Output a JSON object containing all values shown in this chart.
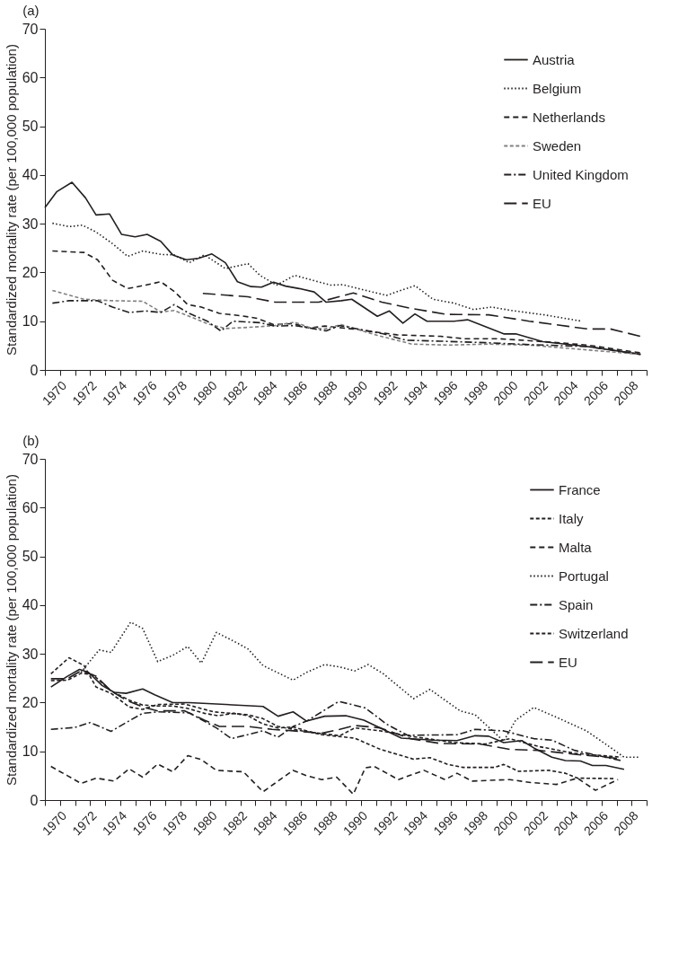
{
  "chart_data": [
    {
      "type": "line",
      "title": "(a)",
      "ylabel": "Standardized mortality rate (per 100,000 population)",
      "xlim": [
        1969,
        2009
      ],
      "ylim": [
        0,
        70
      ],
      "yticks": [
        0,
        10,
        20,
        30,
        40,
        50,
        60,
        70
      ],
      "xticks": [
        {
          "value": 1969,
          "label": null
        },
        1970,
        {
          "value": 1971,
          "label": null
        },
        1972,
        {
          "value": 1973,
          "label": null
        },
        1974,
        {
          "value": 1975,
          "label": null
        },
        1976,
        {
          "value": 1977,
          "label": null
        },
        1978,
        {
          "value": 1979,
          "label": null
        },
        1980,
        {
          "value": 1981,
          "label": null
        },
        1982,
        {
          "value": 1983,
          "label": null
        },
        1984,
        {
          "value": 1985,
          "label": null
        },
        1986,
        {
          "value": 1987,
          "label": null
        },
        1988,
        {
          "value": 1989,
          "label": null
        },
        1990,
        {
          "value": 1991,
          "label": null
        },
        1992,
        {
          "value": 1993,
          "label": null
        },
        1994,
        {
          "value": 1995,
          "label": null
        },
        1996,
        {
          "value": 1997,
          "label": null
        },
        1998,
        {
          "value": 1999,
          "label": null
        },
        2000,
        {
          "value": 2001,
          "label": null
        },
        2002,
        {
          "value": 2003,
          "label": null
        },
        2004,
        {
          "value": 2005,
          "label": null
        },
        2006,
        {
          "value": 2007,
          "label": null
        },
        2008,
        {
          "value": 2009,
          "label": null
        }
      ],
      "grid": false,
      "legend": "top right",
      "series": [
        {
          "name": "Austria",
          "color": "#231f20",
          "line_style": "solid",
          "x": [
            1969.0,
            1969.8,
            1970.8,
            1971.7,
            1972.4,
            1973.3,
            1974.1,
            1975.0,
            1975.8,
            1976.7,
            1977.5,
            1978.4,
            1979.2,
            1980.1,
            1981.0,
            1981.8,
            1982.7,
            1983.4,
            1984.2,
            1985.0,
            1985.9,
            1986.9,
            1987.7,
            1988.7,
            1989.4,
            1991.1,
            1991.9,
            1992.8,
            1993.6,
            1994.4,
            1996.2,
            1997.1,
            1999.5,
            2000.3,
            2002.1,
            2005.1,
            2008.6
          ],
          "values": [
            33.3,
            36.6,
            38.5,
            35.3,
            31.8,
            32.0,
            27.8,
            27.3,
            27.8,
            26.4,
            23.6,
            22.6,
            22.9,
            23.8,
            22.0,
            18.1,
            17.1,
            17.0,
            18.0,
            17.2,
            16.7,
            16.0,
            13.9,
            14.2,
            14.5,
            11.0,
            12.1,
            9.6,
            11.5,
            10.0,
            10.0,
            10.3,
            7.4,
            7.4,
            5.8,
            4.8,
            3.2
          ]
        },
        {
          "name": "Belgium",
          "color": "#231f20",
          "line_style": "dotted",
          "x": [
            1969.5,
            1970.6,
            1971.5,
            1972.4,
            1973.5,
            1974.5,
            1975.5,
            1976.7,
            1977.6,
            1978.6,
            1979.6,
            1981.0,
            1982.5,
            1983.3,
            1984.4,
            1985.6,
            1986.8,
            1988.0,
            1988.8,
            1990.1,
            1991.7,
            1993.6,
            1994.8,
            1996.2,
            1997.5,
            1998.7,
            2000.0,
            2002.2,
            2004.7
          ],
          "values": [
            30.1,
            29.4,
            29.7,
            28.3,
            25.9,
            23.3,
            24.4,
            23.7,
            23.6,
            22.0,
            23.6,
            20.8,
            21.8,
            19.4,
            17.4,
            19.4,
            18.4,
            17.4,
            17.5,
            16.5,
            15.3,
            17.3,
            14.5,
            13.7,
            12.4,
            12.9,
            12.2,
            11.3,
            10.0
          ]
        },
        {
          "name": "Netherlands",
          "color": "#231f20",
          "line_style": "dashed",
          "x": [
            1969.5,
            1971.6,
            1972.5,
            1973.5,
            1974.5,
            1975.7,
            1976.7,
            1977.6,
            1978.5,
            1979.4,
            1980.6,
            1982.1,
            1983.1,
            1984.2,
            1985.5,
            1986.6,
            1987.6,
            1989.5,
            1992.4,
            1995.3,
            1996.9,
            1999.2,
            2002.2,
            2005.1,
            2008.6
          ],
          "values": [
            24.4,
            24.1,
            22.6,
            18.4,
            16.7,
            17.4,
            18.1,
            16.1,
            13.4,
            12.9,
            11.6,
            11.1,
            10.6,
            9.3,
            9.5,
            8.6,
            9.0,
            8.4,
            7.2,
            6.9,
            6.4,
            6.4,
            5.8,
            5.1,
            3.5
          ]
        },
        {
          "name": "Sweden",
          "color": "#808080",
          "line_style": "shortdash",
          "x": [
            1969.5,
            1971.6,
            1973.5,
            1975.5,
            1976.7,
            1977.6,
            1978.6,
            1979.8,
            1981.0,
            1982.9,
            1984.3,
            1985.6,
            1986.6,
            1987.6,
            1988.7,
            1991.1,
            1993.4,
            1995.8,
            1998.5,
            2001.2,
            2005.1,
            2008.6
          ],
          "values": [
            16.3,
            14.5,
            14.2,
            14.1,
            11.9,
            12.2,
            11.0,
            9.5,
            8.5,
            8.8,
            9.1,
            9.8,
            8.7,
            8.4,
            9.3,
            7.1,
            5.3,
            5.1,
            5.3,
            5.1,
            4.1,
            3.2
          ]
        },
        {
          "name": "United Kingdom",
          "color": "#231f20",
          "line_style": "dashdot",
          "x": [
            1969.5,
            1970.6,
            1972.5,
            1973.5,
            1974.6,
            1975.7,
            1976.7,
            1977.6,
            1978.6,
            1979.8,
            1980.7,
            1981.5,
            1983.3,
            1984.3,
            1985.6,
            1986.8,
            1987.7,
            1988.6,
            1991.5,
            1993.0,
            1995.3,
            1998.3,
            2001.2,
            2005.1,
            2008.6
          ],
          "values": [
            13.7,
            14.2,
            14.2,
            12.9,
            11.8,
            12.1,
            11.8,
            13.4,
            11.6,
            10.0,
            8.0,
            10.0,
            9.7,
            9.0,
            9.1,
            8.5,
            8.0,
            9.1,
            7.4,
            6.1,
            5.9,
            5.6,
            5.2,
            4.8,
            3.2
          ]
        },
        {
          "name": "EU",
          "color": "#231f20",
          "line_style": "longdash",
          "x": [
            1979.5,
            1982.5,
            1984.3,
            1987.2,
            1989.5,
            1991.4,
            1993.4,
            1995.7,
            1998.5,
            2001.2,
            2005.1,
            2006.6,
            2008.6
          ],
          "values": [
            15.7,
            15.0,
            13.9,
            13.9,
            15.8,
            13.9,
            12.6,
            11.4,
            11.3,
            10.0,
            8.4,
            8.4,
            6.9
          ]
        }
      ]
    },
    {
      "type": "line",
      "title": "(b)",
      "ylabel": "Standardized mortality rate (per 100,000 population)",
      "xlim": [
        1969,
        2009
      ],
      "ylim": [
        0,
        70
      ],
      "yticks": [
        0,
        10,
        20,
        30,
        40,
        50,
        60,
        70
      ],
      "xticks": [
        {
          "value": 1969,
          "label": null
        },
        1970,
        {
          "value": 1971,
          "label": null
        },
        1972,
        {
          "value": 1973,
          "label": null
        },
        1974,
        {
          "value": 1975,
          "label": null
        },
        1976,
        {
          "value": 1977,
          "label": null
        },
        1978,
        {
          "value": 1979,
          "label": null
        },
        1980,
        {
          "value": 1981,
          "label": null
        },
        1982,
        {
          "value": 1983,
          "label": null
        },
        1984,
        {
          "value": 1985,
          "label": null
        },
        1986,
        {
          "value": 1987,
          "label": null
        },
        1988,
        {
          "value": 1989,
          "label": null
        },
        1990,
        {
          "value": 1991,
          "label": null
        },
        1992,
        {
          "value": 1993,
          "label": null
        },
        1994,
        {
          "value": 1995,
          "label": null
        },
        1996,
        {
          "value": 1997,
          "label": null
        },
        1998,
        {
          "value": 1999,
          "label": null
        },
        2000,
        {
          "value": 2001,
          "label": null
        },
        2002,
        {
          "value": 2003,
          "label": null
        },
        2004,
        {
          "value": 2005,
          "label": null
        },
        2006,
        {
          "value": 2007,
          "label": null
        },
        2008,
        {
          "value": 2009,
          "label": null
        }
      ],
      "grid": false,
      "legend": "top right",
      "series": [
        {
          "name": "France",
          "color": "#231f20",
          "line_style": "solid",
          "x": [
            1969.4,
            1970.5,
            1971.3,
            1971.9,
            1972.8,
            1973.6,
            1974.4,
            1975.5,
            1976.3,
            1977.5,
            1978.6,
            1983.5,
            1984.5,
            1985.5,
            1986.4,
            1987.6,
            1989.0,
            1990.2,
            1991.3,
            1992.7,
            1994.8,
            1996.4,
            1997.6,
            1998.5,
            1999.5,
            2000.7,
            2001.5,
            2002.7,
            2003.6,
            2004.6,
            2005.4,
            2006.3,
            2007.5
          ],
          "values": [
            23.2,
            25.4,
            26.8,
            26.2,
            23.5,
            22.1,
            21.9,
            22.8,
            21.6,
            20.0,
            20.0,
            19.2,
            17.2,
            18.1,
            16.2,
            17.2,
            17.3,
            16.4,
            14.8,
            12.7,
            12.3,
            12.2,
            13.2,
            13.1,
            11.8,
            12.2,
            10.7,
            8.8,
            8.1,
            8.0,
            7.1,
            7.1,
            6.3
          ]
        },
        {
          "name": "Italy",
          "color": "#231f20",
          "line_style": "shortdash",
          "x": [
            1969.4,
            1970.5,
            1971.4,
            1972.2,
            1973.4,
            1974.6,
            1975.5,
            1976.5,
            1977.5,
            1978.5,
            1979.6,
            1980.5,
            1981.6,
            1982.5,
            1983.5,
            1984.5,
            1985.5,
            1986.4,
            1987.4,
            1989.6,
            1991.3,
            1993.5,
            1994.6,
            1995.8,
            1996.8,
            1998.9,
            1999.5,
            2000.5,
            2002.5,
            2003.6,
            2004.4,
            2006.9
          ],
          "values": [
            24.5,
            24.6,
            26.0,
            25.7,
            22.4,
            20.5,
            19.5,
            19.3,
            19.3,
            18.8,
            17.8,
            17.3,
            17.8,
            17.3,
            15.6,
            14.8,
            15.0,
            14.2,
            13.4,
            12.7,
            10.4,
            8.4,
            8.7,
            7.3,
            6.7,
            6.7,
            7.3,
            5.9,
            6.1,
            5.5,
            4.5,
            4.4
          ]
        },
        {
          "name": "Malta",
          "color": "#231f20",
          "line_style": "dashed",
          "x": [
            1969.4,
            1970.5,
            1971.4,
            1972.4,
            1973.6,
            1974.6,
            1975.5,
            1976.5,
            1977.5,
            1978.5,
            1979.4,
            1980.4,
            1982.2,
            1983.5,
            1985.5,
            1986.4,
            1987.4,
            1988.4,
            1989.5,
            1990.3,
            1990.9,
            1992.5,
            1994.2,
            1995.6,
            1996.4,
            1997.4,
            1999.9,
            2001.3,
            2003.0,
            2004.4,
            2005.6,
            2007.1
          ],
          "values": [
            6.9,
            5.0,
            3.4,
            4.5,
            3.9,
            6.4,
            4.7,
            7.4,
            5.8,
            9.1,
            8.3,
            6.1,
            5.8,
            1.7,
            6.1,
            5.0,
            4.2,
            4.7,
            1.2,
            6.6,
            6.9,
            4.2,
            6.1,
            4.2,
            5.5,
            3.9,
            4.2,
            3.6,
            3.2,
            4.5,
            2.0,
            4.2
          ]
        },
        {
          "name": "Portugal",
          "color": "#231f20",
          "line_style": "dotted",
          "x": [
            1971.4,
            1972.6,
            1973.4,
            1974.7,
            1975.5,
            1976.5,
            1977.5,
            1978.5,
            1979.4,
            1980.4,
            1981.8,
            1982.5,
            1983.5,
            1985.5,
            1986.4,
            1987.6,
            1988.6,
            1989.6,
            1990.5,
            1991.5,
            1993.5,
            1994.6,
            1996.6,
            1997.6,
            1999.5,
            2000.3,
            2001.5,
            2003.0,
            2005.0,
            2006.5,
            2007.5,
            2008.5
          ],
          "values": [
            26.2,
            30.8,
            30.3,
            36.5,
            35.2,
            28.4,
            29.7,
            31.5,
            28.1,
            34.4,
            32.2,
            31.0,
            27.6,
            24.6,
            26.2,
            27.8,
            27.3,
            26.5,
            27.8,
            25.9,
            20.8,
            22.7,
            18.3,
            17.5,
            12.1,
            16.4,
            19.0,
            17.0,
            14.2,
            11.0,
            8.8,
            8.8
          ]
        },
        {
          "name": "Spain",
          "color": "#231f20",
          "line_style": "dashdot",
          "x": [
            1969.4,
            1971.0,
            1972.0,
            1973.4,
            1974.4,
            1975.5,
            1976.5,
            1978.6,
            1980.4,
            1981.4,
            1983.5,
            1984.5,
            1985.5,
            1986.4,
            1988.4,
            1988.6,
            1990.3,
            1991.7,
            1993.1,
            1996.4,
            1997.6,
            1999.5,
            2001.5,
            2002.7,
            2004.2,
            2007.3
          ],
          "values": [
            14.5,
            14.9,
            15.9,
            14.1,
            15.9,
            17.8,
            18.1,
            17.9,
            14.8,
            12.6,
            14.2,
            12.9,
            15.1,
            16.2,
            20.0,
            20.2,
            18.9,
            15.6,
            13.3,
            13.4,
            14.5,
            14.2,
            12.6,
            12.3,
            10.2,
            8.1
          ]
        },
        {
          "name": "Switzerland",
          "color": "#231f20",
          "line_style": "shortdash",
          "x": [
            1969.4,
            1970.6,
            1971.6,
            1972.4,
            1973.4,
            1974.6,
            1975.5,
            1976.5,
            1978.3,
            1980.2,
            1982.5,
            1983.5,
            1984.5,
            1986.4,
            1988.6,
            1989.6,
            1991.3,
            1993.1,
            1996.2,
            1998.3,
            1999.9,
            2001.8,
            2004.2,
            2007.3
          ],
          "values": [
            25.9,
            29.2,
            27.6,
            23.2,
            21.9,
            19.1,
            18.6,
            19.6,
            19.7,
            18.1,
            17.5,
            16.7,
            15.1,
            14.0,
            13.2,
            14.8,
            14.2,
            13.2,
            11.8,
            11.5,
            12.6,
            11.0,
            9.6,
            8.8
          ]
        },
        {
          "name": "EU",
          "color": "#231f20",
          "line_style": "longdash",
          "x": [
            1969.4,
            1970.5,
            1971.4,
            1972.4,
            1973.4,
            1974.4,
            1975.5,
            1976.5,
            1978.3,
            1979.6,
            1980.6,
            1982.5,
            1984.1,
            1985.5,
            1987.4,
            1988.6,
            1989.6,
            1991.3,
            1993.3,
            1995.3,
            1997.9,
            1999.9,
            2001.8,
            2004.2,
            2007.3
          ],
          "values": [
            24.9,
            24.9,
            26.5,
            25.4,
            22.4,
            20.5,
            19.1,
            18.3,
            18.3,
            16.4,
            15.1,
            15.1,
            14.5,
            14.2,
            13.7,
            14.5,
            15.3,
            14.8,
            12.6,
            11.6,
            11.5,
            10.4,
            10.2,
            9.4,
            8.5
          ]
        }
      ]
    }
  ]
}
